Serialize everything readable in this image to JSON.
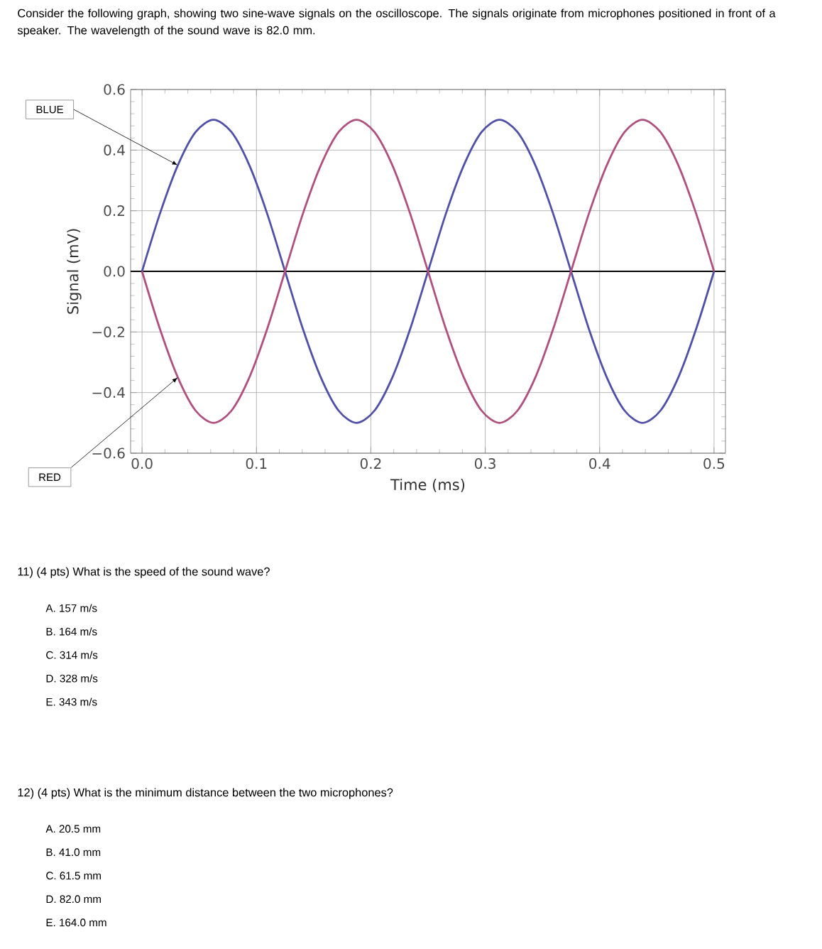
{
  "chart_data": {
    "type": "line",
    "title": "Consider the following graph, showing two sine-wave signals on the oscilloscope. The signals originate from microphones positioned in front of a speaker. The wavelength of the sound wave is 82.0 mm.",
    "xlabel": "Time (ms)",
    "ylabel": "Signal (mV)",
    "x": [
      0,
      0.0156,
      0.0313,
      0.0469,
      0.0625,
      0.0781,
      0.0938,
      0.1094,
      0.125,
      0.1406,
      0.1563,
      0.1719,
      0.1875,
      0.2031,
      0.2188,
      0.2344,
      0.25,
      0.2656,
      0.2813,
      0.2969,
      0.3125,
      0.3281,
      0.3438,
      0.3594,
      0.375,
      0.3906,
      0.4063,
      0.4219,
      0.4375,
      0.4531,
      0.4688,
      0.4844,
      0.5
    ],
    "series": [
      {
        "name": "BLUE",
        "color": "#5050a8",
        "values": [
          0,
          0.19,
          0.35,
          0.46,
          0.5,
          0.46,
          0.35,
          0.19,
          0,
          -0.19,
          -0.35,
          -0.46,
          -0.5,
          -0.46,
          -0.35,
          -0.19,
          0,
          0.19,
          0.35,
          0.46,
          0.5,
          0.46,
          0.35,
          0.19,
          0,
          -0.19,
          -0.35,
          -0.46,
          -0.5,
          -0.46,
          -0.35,
          -0.19,
          0
        ]
      },
      {
        "name": "RED",
        "color": "#b0507f",
        "values": [
          0,
          -0.19,
          -0.35,
          -0.46,
          -0.5,
          -0.46,
          -0.35,
          -0.19,
          0,
          0.19,
          0.35,
          0.46,
          0.5,
          0.46,
          0.35,
          0.19,
          0,
          -0.19,
          -0.35,
          -0.46,
          -0.5,
          -0.46,
          -0.35,
          -0.19,
          0,
          0.19,
          0.35,
          0.46,
          0.5,
          0.46,
          0.35,
          0.19,
          0
        ]
      }
    ],
    "xlim": [
      -0.01,
      0.51
    ],
    "ylim": [
      -0.6,
      0.6
    ],
    "xticks": [
      {
        "value": 0,
        "label": "0.0"
      },
      0.1,
      0.2,
      0.3,
      0.4,
      0.5
    ],
    "yticks": [
      {
        "value": -0.6,
        "label": "−0.6"
      },
      {
        "value": -0.4,
        "label": "−0.4"
      },
      {
        "value": -0.2,
        "label": "−0.2"
      },
      {
        "value": 0,
        "label": "0.0"
      },
      0.2,
      0.4,
      0.6
    ],
    "grid": true,
    "line_style": "solid",
    "ref_lines": [
      {
        "axis": "y",
        "value": 0,
        "color": "#000000"
      }
    ],
    "annotations": [
      "11) (4 pts) What is the speed of the sound wave?",
      "A.  157 m/s",
      "B.  164 m/s",
      "C.  314 m/s",
      "D.  328 m/s",
      "E.  343 m/s",
      "12) (4 pts) What is the minimum distance between the two microphones?",
      "A.  20.5 mm",
      "B.  41.0 mm",
      "C.  61.5 mm",
      "D.  82.0 mm",
      "E.  164.0 mm"
    ]
  }
}
